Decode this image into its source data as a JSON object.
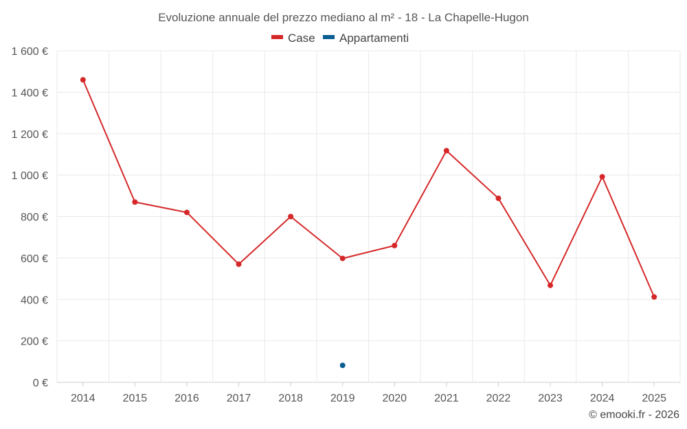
{
  "chart_data": {
    "type": "line",
    "title": "Evoluzione annuale del prezzo mediano al m² - 18 - La Chapelle-Hugon",
    "categories": [
      "2014",
      "2015",
      "2016",
      "2017",
      "2018",
      "2019",
      "2020",
      "2021",
      "2022",
      "2023",
      "2024",
      "2025"
    ],
    "series": [
      {
        "name": "Case",
        "color": "#d62728",
        "values": [
          1460,
          870,
          820,
          570,
          800,
          598,
          660,
          1118,
          888,
          468,
          992,
          412
        ]
      },
      {
        "name": "Appartamenti",
        "color": "#0b5e91",
        "values": [
          null,
          null,
          null,
          null,
          null,
          82,
          null,
          null,
          null,
          null,
          null,
          null
        ]
      }
    ],
    "ylim": [
      0,
      1600
    ],
    "y_ticks": [
      0,
      200,
      400,
      600,
      800,
      1000,
      1200,
      1400,
      1600
    ],
    "y_tick_labels": [
      "0 €",
      "200 €",
      "400 €",
      "600 €",
      "800 €",
      "1 000 €",
      "1 200 €",
      "1 400 €",
      "1 600 €"
    ],
    "xlabel": "",
    "ylabel": "",
    "grid": true,
    "legend_position": "top-center"
  },
  "credit": "© emooki.fr - 2026"
}
